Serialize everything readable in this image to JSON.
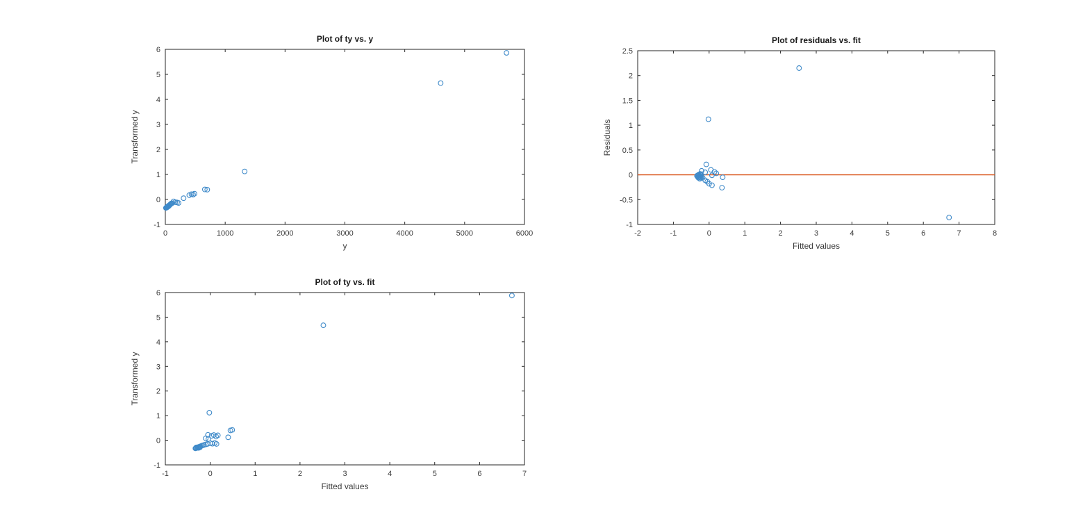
{
  "figure": {
    "background": "#ffffff"
  },
  "colors": {
    "marker": "#3f8ac9",
    "zero_line": "#d95319",
    "axis": "#262626",
    "tick_label": "#3b3b3b",
    "title": "#1a1a1a",
    "axis_label": "#3b3b3b"
  },
  "chart_data": [
    {
      "id": "ty-vs-y",
      "type": "scatter",
      "title": "Plot of ty vs. y",
      "xlabel": "y",
      "ylabel": "Transformed y",
      "xlim": [
        0,
        6000
      ],
      "ylim": [
        -1,
        6
      ],
      "xticks": [
        0,
        1000,
        2000,
        3000,
        4000,
        5000,
        6000
      ],
      "xticklabels": [
        "0",
        "1000",
        "2000",
        "3000",
        "4000",
        "5000",
        "6000"
      ],
      "yticks": [
        -1,
        0,
        1,
        2,
        3,
        4,
        5,
        6
      ],
      "yticklabels": [
        "-1",
        "0",
        "1",
        "2",
        "3",
        "4",
        "5",
        "6"
      ],
      "grid": false,
      "zero_line": false,
      "points": [
        [
          5700,
          5.86
        ],
        [
          4600,
          4.65
        ],
        [
          1325,
          1.12
        ],
        [
          660,
          0.4
        ],
        [
          700,
          0.39
        ],
        [
          400,
          0.17
        ],
        [
          437,
          0.21
        ],
        [
          464,
          0.19
        ],
        [
          487,
          0.23
        ],
        [
          305,
          0.05
        ],
        [
          137,
          -0.08
        ],
        [
          167,
          -0.11
        ],
        [
          196,
          -0.12
        ],
        [
          221,
          -0.14
        ],
        [
          100,
          -0.16
        ],
        [
          112,
          -0.15
        ],
        [
          15,
          -0.33
        ],
        [
          22,
          -0.31
        ],
        [
          30,
          -0.3
        ],
        [
          38,
          -0.28
        ],
        [
          46,
          -0.27
        ],
        [
          55,
          -0.25
        ],
        [
          64,
          -0.24
        ],
        [
          73,
          -0.22
        ],
        [
          82,
          -0.2
        ],
        [
          92,
          -0.18
        ],
        [
          10,
          -0.34
        ],
        [
          26,
          -0.32
        ],
        [
          42,
          -0.29
        ],
        [
          60,
          -0.26
        ],
        [
          78,
          -0.21
        ],
        [
          50,
          -0.28
        ]
      ]
    },
    {
      "id": "residuals-vs-fit",
      "type": "scatter",
      "title": "Plot of residuals vs. fit",
      "xlabel": "Fitted values",
      "ylabel": "Residuals",
      "xlim": [
        -2,
        8
      ],
      "ylim": [
        -1,
        2.5
      ],
      "xticks": [
        -2,
        -1,
        0,
        1,
        2,
        3,
        4,
        5,
        6,
        7,
        8
      ],
      "xticklabels": [
        "-2",
        "-1",
        "0",
        "1",
        "2",
        "3",
        "4",
        "5",
        "6",
        "7",
        "8"
      ],
      "yticks": [
        -1,
        -0.5,
        0,
        0.5,
        1,
        1.5,
        2,
        2.5
      ],
      "yticklabels": [
        "-1",
        "-0.5",
        "0",
        "0.5",
        "1",
        "1.5",
        "2",
        "2.5"
      ],
      "grid": false,
      "zero_line": true,
      "zero_line_y": 0,
      "points": [
        [
          2.52,
          2.15
        ],
        [
          6.72,
          -0.86
        ],
        [
          -0.02,
          1.12
        ],
        [
          -0.08,
          0.21
        ],
        [
          -0.21,
          0.08
        ],
        [
          -0.11,
          0.05
        ],
        [
          0.05,
          0.1
        ],
        [
          0.15,
          0.06
        ],
        [
          0.2,
          0.03
        ],
        [
          0.08,
          -0.01
        ],
        [
          0.38,
          -0.05
        ],
        [
          0.36,
          -0.26
        ],
        [
          -0.18,
          -0.06
        ],
        [
          -0.11,
          -0.11
        ],
        [
          -0.05,
          -0.14
        ],
        [
          0.0,
          -0.18
        ],
        [
          0.08,
          -0.21
        ],
        [
          -0.34,
          -0.02
        ],
        [
          -0.32,
          -0.04
        ],
        [
          -0.3,
          0.0
        ],
        [
          -0.3,
          -0.06
        ],
        [
          -0.28,
          -0.02
        ],
        [
          -0.27,
          -0.05
        ],
        [
          -0.26,
          0.01
        ],
        [
          -0.25,
          -0.03
        ],
        [
          -0.24,
          -0.06
        ],
        [
          -0.23,
          -0.01
        ],
        [
          -0.22,
          -0.04
        ],
        [
          -0.26,
          -0.08
        ],
        [
          -0.29,
          -0.03
        ],
        [
          -0.31,
          -0.01
        ],
        [
          -0.25,
          0.02
        ]
      ]
    },
    {
      "id": "ty-vs-fit",
      "type": "scatter",
      "title": "Plot of ty vs. fit",
      "xlabel": "Fitted values",
      "ylabel": "Transformed y",
      "xlim": [
        -1,
        7
      ],
      "ylim": [
        -1,
        6
      ],
      "xticks": [
        -1,
        0,
        1,
        2,
        3,
        4,
        5,
        6,
        7
      ],
      "xticklabels": [
        "-1",
        "0",
        "1",
        "2",
        "3",
        "4",
        "5",
        "6",
        "7"
      ],
      "yticks": [
        -1,
        0,
        1,
        2,
        3,
        4,
        5,
        6
      ],
      "yticklabels": [
        "-1",
        "0",
        "1",
        "2",
        "3",
        "4",
        "5",
        "6"
      ],
      "grid": false,
      "zero_line": false,
      "points": [
        [
          6.72,
          5.88
        ],
        [
          2.52,
          4.67
        ],
        [
          -0.02,
          1.12
        ],
        [
          0.45,
          0.4
        ],
        [
          0.49,
          0.42
        ],
        [
          0.4,
          0.12
        ],
        [
          -0.05,
          0.22
        ],
        [
          0.03,
          0.18
        ],
        [
          0.08,
          0.21
        ],
        [
          0.13,
          0.15
        ],
        [
          0.17,
          0.2
        ],
        [
          -0.1,
          0.08
        ],
        [
          -0.04,
          0.05
        ],
        [
          0.0,
          -0.12
        ],
        [
          0.05,
          -0.14
        ],
        [
          0.1,
          -0.11
        ],
        [
          0.14,
          -0.15
        ],
        [
          -0.06,
          -0.15
        ],
        [
          -0.1,
          -0.17
        ],
        [
          -0.14,
          -0.19
        ],
        [
          -0.17,
          -0.21
        ],
        [
          -0.2,
          -0.23
        ],
        [
          -0.22,
          -0.25
        ],
        [
          -0.24,
          -0.26
        ],
        [
          -0.25,
          -0.28
        ],
        [
          -0.27,
          -0.28
        ],
        [
          -0.28,
          -0.3
        ],
        [
          -0.3,
          -0.31
        ],
        [
          -0.31,
          -0.29
        ],
        [
          -0.32,
          -0.32
        ],
        [
          -0.33,
          -0.33
        ],
        [
          -0.26,
          -0.31
        ],
        [
          -0.23,
          -0.29
        ]
      ]
    }
  ]
}
